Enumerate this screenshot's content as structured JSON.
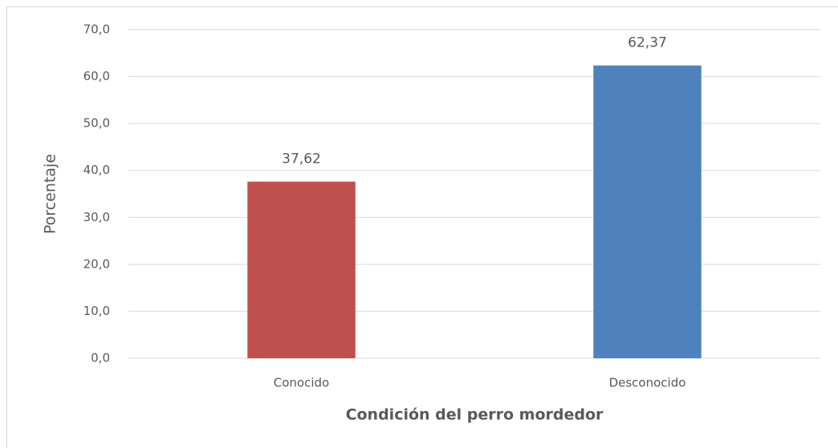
{
  "chart_data": {
    "type": "bar",
    "categories": [
      "Conocido",
      "Desconocido"
    ],
    "values": [
      37.62,
      62.37
    ],
    "value_labels": [
      "37,62",
      "62,37"
    ],
    "colors": [
      "#c0504d",
      "#4f81bd"
    ],
    "x_label": "Condición del perro mordedor",
    "y_label": "Porcentaje",
    "ylim": [
      0,
      70
    ],
    "yticks": [
      {
        "value": 0,
        "label": "0,0"
      },
      {
        "value": 10,
        "label": "10,0"
      },
      {
        "value": 20,
        "label": "20,0"
      },
      {
        "value": 30,
        "label": "30,0"
      },
      {
        "value": 40,
        "label": "40,0"
      },
      {
        "value": 50,
        "label": "50,0"
      },
      {
        "value": 60,
        "label": "60,0"
      },
      {
        "value": 70,
        "label": "70,0"
      }
    ],
    "grid": true
  }
}
